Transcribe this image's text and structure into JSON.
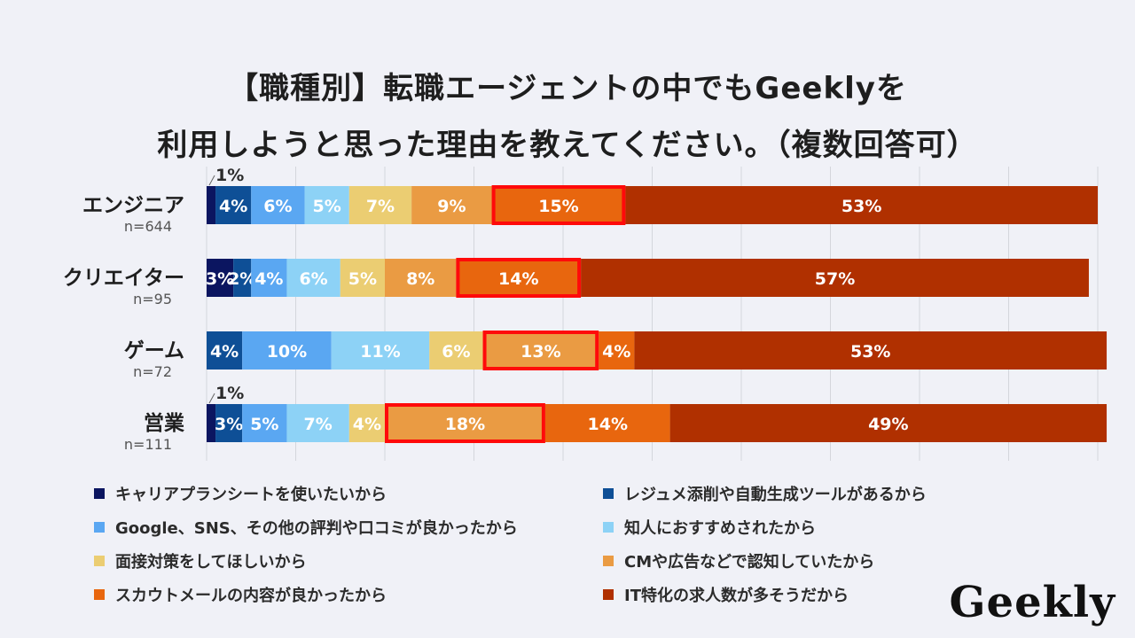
{
  "title": {
    "line1": "【職種別】転職エージェントの中でもGeeklyを",
    "line2": "利用しようと思った理由を教えてください。（複数回答可）"
  },
  "logo": "Geekly",
  "chart_data": {
    "type": "bar",
    "orientation": "horizontal",
    "stacked": true,
    "title": "【職種別】転職エージェントの中でもGeeklyを利用しようと思った理由を教えてください。（複数回答可）",
    "xlim": [
      0,
      100
    ],
    "grid": true,
    "legend_position": "bottom",
    "categories": [
      {
        "label": "エンジニア",
        "n": "n=644",
        "highlight": 6
      },
      {
        "label": "クリエイター",
        "n": "n=95",
        "highlight": 6
      },
      {
        "label": "ゲーム",
        "n": "n=72",
        "highlight": 5
      },
      {
        "label": "営業",
        "n": "n=111",
        "highlight": 5
      }
    ],
    "series": [
      {
        "name": "キャリアプランシートを使いたいから",
        "color": "#0b1560",
        "values": [
          1,
          3,
          0,
          1
        ],
        "labels": [
          "1%",
          "3%",
          "",
          "1%"
        ]
      },
      {
        "name": "レジュメ添削や自動生成ツールがあるから",
        "color": "#0e4f96",
        "values": [
          4,
          2,
          4,
          3
        ],
        "labels": [
          "4%",
          "2%",
          "4%",
          "3%"
        ]
      },
      {
        "name": "Google、SNS、その他の評判や口コミが良かったから",
        "color": "#5aa7f2",
        "values": [
          6,
          4,
          10,
          5
        ],
        "labels": [
          "6%",
          "4%",
          "10%",
          "5%"
        ]
      },
      {
        "name": "知人におすすめされたから",
        "color": "#8dd2f6",
        "values": [
          5,
          6,
          11,
          7
        ],
        "labels": [
          "5%",
          "6%",
          "11%",
          "7%"
        ]
      },
      {
        "name": "面接対策をしてほしいから",
        "color": "#ebcd72",
        "values": [
          7,
          5,
          6,
          4
        ],
        "labels": [
          "7%",
          "5%",
          "6%",
          "4%"
        ]
      },
      {
        "name": "CMや広告などで認知していたから",
        "color": "#ea9b43",
        "values": [
          9,
          8,
          13,
          18
        ],
        "labels": [
          "9%",
          "8%",
          "13%",
          "18%"
        ]
      },
      {
        "name": "スカウトメールの内容が良かったから",
        "color": "#e8660e",
        "values": [
          15,
          14,
          4,
          14
        ],
        "labels": [
          "15%",
          "14%",
          "4%",
          "14%"
        ]
      },
      {
        "name": "IT特化の求人数が多そうだから",
        "color": "#b03000",
        "values": [
          53,
          57,
          53,
          49
        ],
        "labels": [
          "53%",
          "57%",
          "53%",
          "49%"
        ]
      }
    ]
  }
}
